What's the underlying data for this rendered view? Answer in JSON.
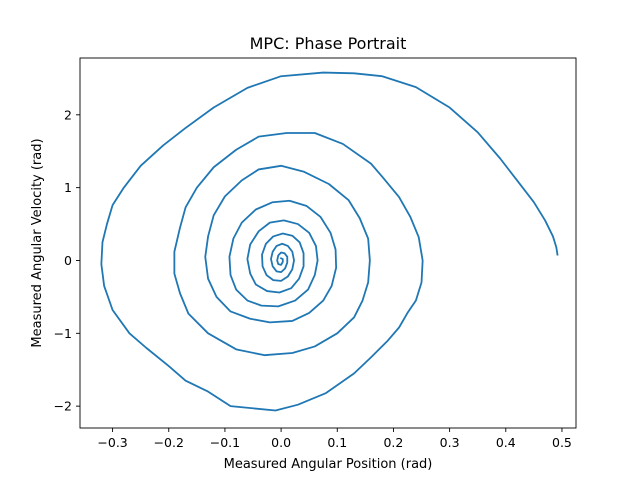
{
  "chart_data": {
    "type": "line",
    "title": "MPC: Phase Portrait",
    "xlabel": "Measured Angular Position (rad)",
    "ylabel": "Measured Angular Velocity (rad)",
    "xlim": [
      -0.358,
      0.525
    ],
    "ylim": [
      -2.3,
      2.78
    ],
    "xticks": [
      -0.3,
      -0.2,
      -0.1,
      0.0,
      0.1,
      0.2,
      0.3,
      0.4,
      0.5
    ],
    "xtick_labels": [
      "−0.3",
      "−0.2",
      "−0.1",
      "0.0",
      "0.1",
      "0.2",
      "0.3",
      "0.4",
      "0.5"
    ],
    "yticks": [
      -2,
      -1,
      0,
      1,
      2
    ],
    "ytick_labels": [
      "−2",
      "−1",
      "0",
      "1",
      "2"
    ],
    "grid": false,
    "series": [
      {
        "color": "#1f77b4",
        "points": [
          [
            0.492,
            0.08
          ],
          [
            0.49,
            0.18
          ],
          [
            0.484,
            0.33
          ],
          [
            0.47,
            0.55
          ],
          [
            0.45,
            0.8
          ],
          [
            0.42,
            1.1
          ],
          [
            0.39,
            1.4
          ],
          [
            0.35,
            1.76
          ],
          [
            0.3,
            2.1
          ],
          [
            0.24,
            2.38
          ],
          [
            0.18,
            2.53
          ],
          [
            0.13,
            2.57
          ],
          [
            0.075,
            2.58
          ],
          [
            0.0,
            2.53
          ],
          [
            -0.06,
            2.37
          ],
          [
            -0.12,
            2.1
          ],
          [
            -0.17,
            1.82
          ],
          [
            -0.21,
            1.58
          ],
          [
            -0.25,
            1.3
          ],
          [
            -0.28,
            1.0
          ],
          [
            -0.3,
            0.76
          ],
          [
            -0.31,
            0.5
          ],
          [
            -0.318,
            0.25
          ],
          [
            -0.32,
            -0.05
          ],
          [
            -0.315,
            -0.35
          ],
          [
            -0.3,
            -0.68
          ],
          [
            -0.27,
            -1.0
          ],
          [
            -0.24,
            -1.2
          ],
          [
            -0.2,
            -1.45
          ],
          [
            -0.17,
            -1.65
          ],
          [
            -0.13,
            -1.8
          ],
          [
            -0.09,
            -2.0
          ],
          [
            -0.01,
            -2.06
          ],
          [
            0.03,
            -1.98
          ],
          [
            0.08,
            -1.82
          ],
          [
            0.13,
            -1.55
          ],
          [
            0.16,
            -1.33
          ],
          [
            0.19,
            -1.1
          ],
          [
            0.21,
            -0.92
          ],
          [
            0.225,
            -0.72
          ],
          [
            0.24,
            -0.55
          ],
          [
            0.25,
            -0.3
          ],
          [
            0.252,
            0.0
          ],
          [
            0.245,
            0.32
          ],
          [
            0.23,
            0.6
          ],
          [
            0.21,
            0.87
          ],
          [
            0.18,
            1.15
          ],
          [
            0.16,
            1.33
          ],
          [
            0.11,
            1.6
          ],
          [
            0.06,
            1.75
          ],
          [
            0.01,
            1.75
          ],
          [
            -0.04,
            1.7
          ],
          [
            -0.08,
            1.52
          ],
          [
            -0.12,
            1.28
          ],
          [
            -0.15,
            1.0
          ],
          [
            -0.17,
            0.73
          ],
          [
            -0.18,
            0.45
          ],
          [
            -0.19,
            0.12
          ],
          [
            -0.19,
            -0.18
          ],
          [
            -0.18,
            -0.45
          ],
          [
            -0.165,
            -0.73
          ],
          [
            -0.13,
            -1.0
          ],
          [
            -0.08,
            -1.22
          ],
          [
            -0.03,
            -1.3
          ],
          [
            0.02,
            -1.27
          ],
          [
            0.06,
            -1.18
          ],
          [
            0.1,
            -1.0
          ],
          [
            0.13,
            -0.78
          ],
          [
            0.145,
            -0.55
          ],
          [
            0.155,
            -0.3
          ],
          [
            0.158,
            0.0
          ],
          [
            0.155,
            0.3
          ],
          [
            0.14,
            0.58
          ],
          [
            0.12,
            0.83
          ],
          [
            0.085,
            1.05
          ],
          [
            0.04,
            1.22
          ],
          [
            0.0,
            1.3
          ],
          [
            -0.04,
            1.25
          ],
          [
            -0.07,
            1.1
          ],
          [
            -0.1,
            0.88
          ],
          [
            -0.12,
            0.62
          ],
          [
            -0.13,
            0.33
          ],
          [
            -0.135,
            0.05
          ],
          [
            -0.13,
            -0.25
          ],
          [
            -0.115,
            -0.5
          ],
          [
            -0.09,
            -0.7
          ],
          [
            -0.055,
            -0.8
          ],
          [
            -0.02,
            -0.85
          ],
          [
            0.02,
            -0.83
          ],
          [
            0.05,
            -0.72
          ],
          [
            0.075,
            -0.55
          ],
          [
            0.09,
            -0.35
          ],
          [
            0.098,
            -0.1
          ],
          [
            0.097,
            0.15
          ],
          [
            0.088,
            0.38
          ],
          [
            0.07,
            0.6
          ],
          [
            0.045,
            0.75
          ],
          [
            0.015,
            0.82
          ],
          [
            -0.015,
            0.8
          ],
          [
            -0.045,
            0.7
          ],
          [
            -0.07,
            0.52
          ],
          [
            -0.085,
            0.3
          ],
          [
            -0.092,
            0.05
          ],
          [
            -0.09,
            -0.2
          ],
          [
            -0.08,
            -0.4
          ],
          [
            -0.06,
            -0.55
          ],
          [
            -0.035,
            -0.62
          ],
          [
            -0.005,
            -0.63
          ],
          [
            0.025,
            -0.55
          ],
          [
            0.048,
            -0.4
          ],
          [
            0.06,
            -0.2
          ],
          [
            0.065,
            0.0
          ],
          [
            0.062,
            0.2
          ],
          [
            0.05,
            0.38
          ],
          [
            0.03,
            0.5
          ],
          [
            0.005,
            0.55
          ],
          [
            -0.02,
            0.52
          ],
          [
            -0.04,
            0.4
          ],
          [
            -0.055,
            0.22
          ],
          [
            -0.06,
            0.02
          ],
          [
            -0.055,
            -0.18
          ],
          [
            -0.045,
            -0.33
          ],
          [
            -0.025,
            -0.42
          ],
          [
            -0.003,
            -0.44
          ],
          [
            0.018,
            -0.38
          ],
          [
            0.032,
            -0.25
          ],
          [
            0.04,
            -0.08
          ],
          [
            0.04,
            0.1
          ],
          [
            0.033,
            0.25
          ],
          [
            0.02,
            0.34
          ],
          [
            0.003,
            0.37
          ],
          [
            -0.014,
            0.33
          ],
          [
            -0.027,
            0.23
          ],
          [
            -0.034,
            0.08
          ],
          [
            -0.033,
            -0.08
          ],
          [
            -0.026,
            -0.2
          ],
          [
            -0.014,
            -0.27
          ],
          [
            0.0,
            -0.28
          ],
          [
            0.012,
            -0.22
          ],
          [
            0.02,
            -0.12
          ],
          [
            0.023,
            0.0
          ],
          [
            0.02,
            0.12
          ],
          [
            0.012,
            0.2
          ],
          [
            0.002,
            0.23
          ],
          [
            -0.008,
            0.2
          ],
          [
            -0.015,
            0.12
          ],
          [
            -0.018,
            0.02
          ],
          [
            -0.015,
            -0.08
          ],
          [
            -0.008,
            -0.15
          ],
          [
            0.0,
            -0.16
          ],
          [
            0.007,
            -0.11
          ],
          [
            0.011,
            -0.03
          ],
          [
            0.011,
            0.05
          ],
          [
            0.006,
            0.1
          ],
          [
            0.0,
            0.11
          ],
          [
            -0.005,
            0.07
          ],
          [
            -0.007,
            0.0
          ],
          [
            -0.005,
            -0.05
          ],
          [
            0.0,
            -0.06
          ],
          [
            0.003,
            -0.02
          ],
          [
            0.003,
            0.02
          ],
          [
            0.0,
            0.03
          ]
        ]
      }
    ]
  }
}
